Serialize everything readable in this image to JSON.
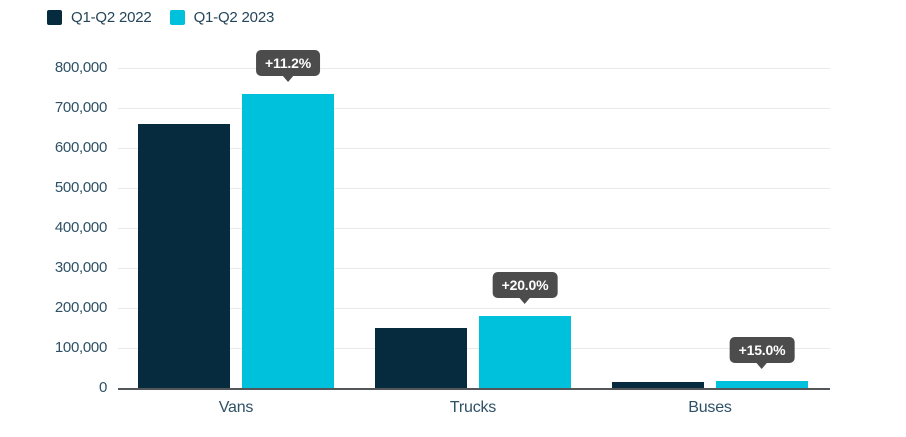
{
  "chart_data": {
    "type": "bar",
    "title": "",
    "categories": [
      "Vans",
      "Trucks",
      "Buses"
    ],
    "series": [
      {
        "name": "Q1-Q2 2022",
        "color": "#062b3f",
        "values": [
          660000,
          150000,
          15000
        ]
      },
      {
        "name": "Q1-Q2 2023",
        "color": "#00c1dc",
        "values": [
          734000,
          180000,
          17250
        ]
      }
    ],
    "annotations": [
      {
        "category": "Vans",
        "label": "+11.2%"
      },
      {
        "category": "Trucks",
        "label": "+20.0%"
      },
      {
        "category": "Buses",
        "label": "+15.0%"
      }
    ],
    "ylim": [
      0,
      800000
    ],
    "ytick_interval": 100000,
    "yticks": [
      "0",
      "100,000",
      "200,000",
      "300,000",
      "400,000",
      "500,000",
      "600,000",
      "700,000",
      "800,000"
    ],
    "grid": true,
    "legend_position": "top-left",
    "colors": {
      "tooltip_bg": "#4c4c4c",
      "tooltip_text": "#ffffff",
      "axis_text": "#2e5166",
      "axis_line": "#53575a",
      "gridline": "#e9e9e9",
      "background": "#ffffff"
    }
  }
}
